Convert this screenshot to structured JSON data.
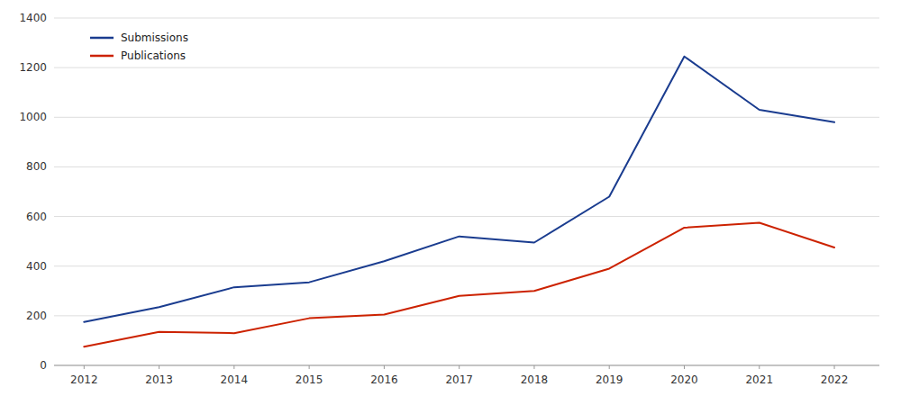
{
  "chart_data": {
    "type": "line",
    "x": [
      2012,
      2013,
      2014,
      2015,
      2016,
      2017,
      2018,
      2019,
      2020,
      2021,
      2022
    ],
    "series": [
      {
        "name": "Submissions",
        "color": "#1a3c8f",
        "values": [
          175,
          235,
          315,
          335,
          420,
          520,
          495,
          680,
          1245,
          1030,
          980
        ]
      },
      {
        "name": "Publications",
        "color": "#cc2200",
        "values": [
          75,
          135,
          130,
          190,
          205,
          280,
          300,
          390,
          555,
          575,
          475
        ]
      }
    ],
    "xlim": [
      2011.6,
      2022.6
    ],
    "xticks": [
      2012,
      2013,
      2014,
      2015,
      2016,
      2017,
      2018,
      2019,
      2020,
      2021,
      2022
    ],
    "ylim": [
      0,
      1400
    ],
    "yticks": [
      0,
      200,
      400,
      600,
      800,
      1000,
      1200,
      1400
    ],
    "grid": "y",
    "legend": "upper left"
  }
}
